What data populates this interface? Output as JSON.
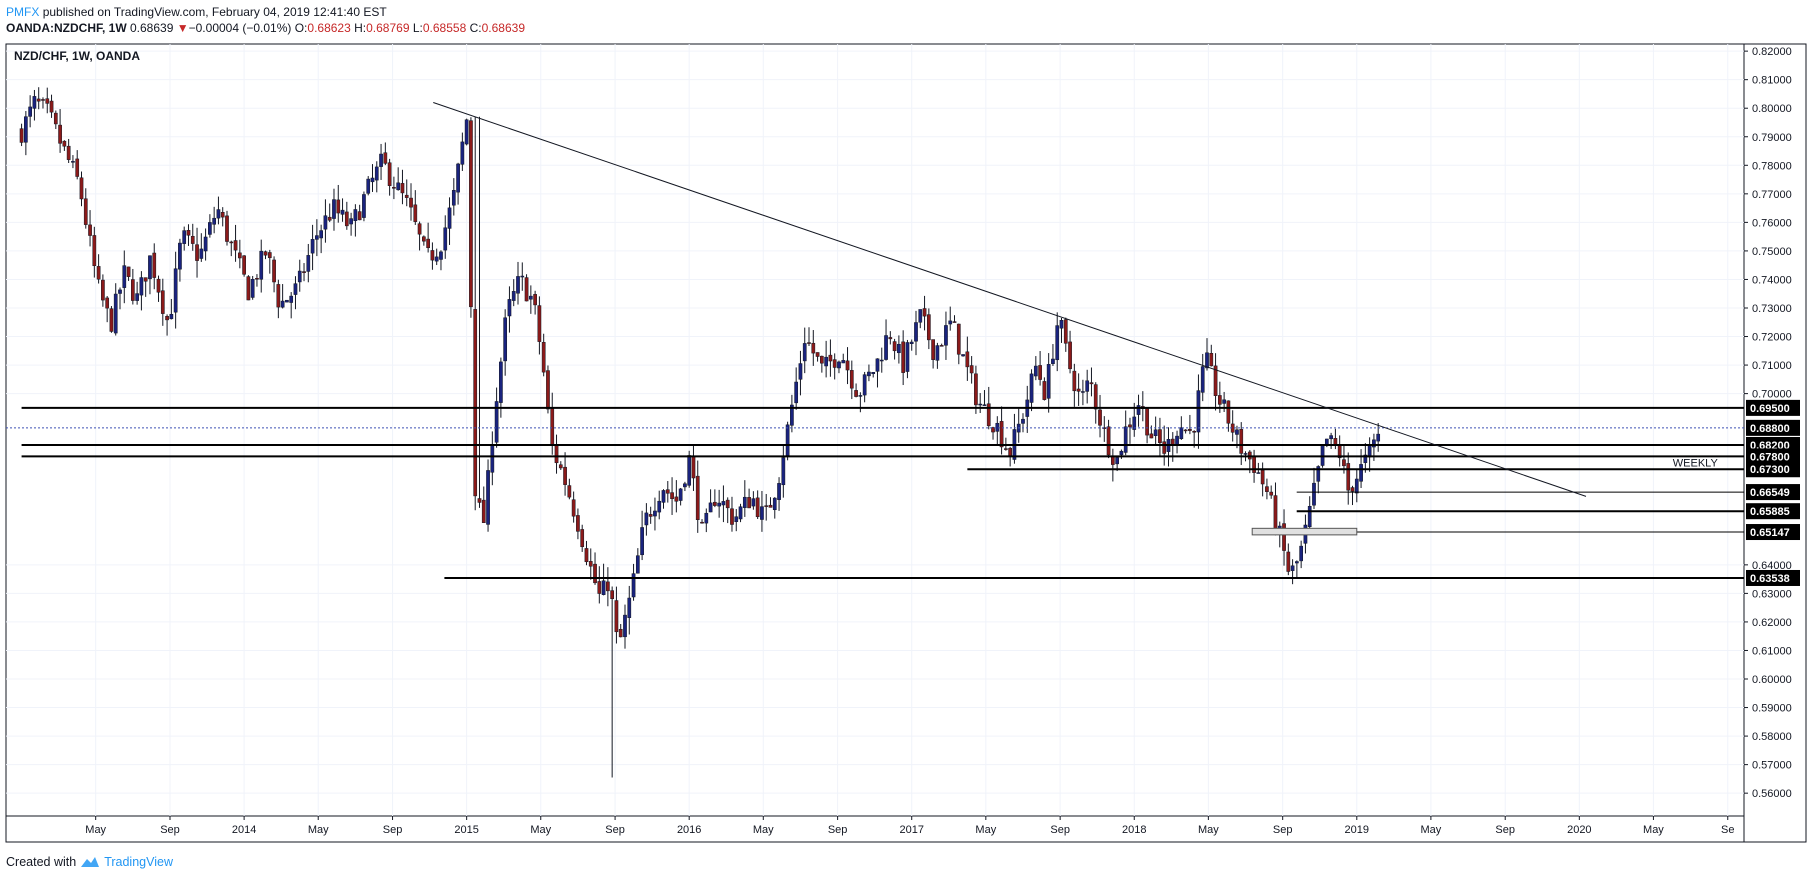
{
  "header": {
    "brand": "PMFX",
    "published": "published on TradingView.com, February 04, 2019 12:41:40 EST",
    "symbol": "OANDA:NZDCHF, 1W",
    "last": "0.68639",
    "arrow": "▼",
    "change": "−0.00004 (−0.01%)",
    "open_label": "O:",
    "open": "0.68623",
    "high_label": "H:",
    "high": "0.68769",
    "low_label": "L:",
    "low": "0.68558",
    "close_label": "C:",
    "close": "0.68639"
  },
  "footer": {
    "created": "Created with",
    "logo": "TradingView"
  },
  "colors": {
    "up": "#1a237e",
    "down": "#8b1a1a",
    "trendline": "#131722",
    "level": "#000000",
    "price_line": "#3f51b5"
  },
  "chart_data": {
    "type": "candlestick",
    "legend": "NZD/CHF, 1W, OANDA",
    "ylim": [
      0.552,
      0.8225
    ],
    "y_ticks": [
      "0.82000",
      "0.81000",
      "0.80000",
      "0.79000",
      "0.78000",
      "0.77000",
      "0.76000",
      "0.75000",
      "0.74000",
      "0.73000",
      "0.72000",
      "0.71000",
      "0.70000",
      "0.64000",
      "0.63000",
      "0.62000",
      "0.61000",
      "0.60000",
      "0.59000",
      "0.58000",
      "0.57000",
      "0.56000"
    ],
    "x_ticks": [
      {
        "label": "May",
        "t": 2013.333
      },
      {
        "label": "Sep",
        "t": 2013.667
      },
      {
        "label": "2014",
        "t": 2014.0
      },
      {
        "label": "May",
        "t": 2014.333
      },
      {
        "label": "Sep",
        "t": 2014.667
      },
      {
        "label": "2015",
        "t": 2015.0
      },
      {
        "label": "May",
        "t": 2015.333
      },
      {
        "label": "Sep",
        "t": 2015.667
      },
      {
        "label": "2016",
        "t": 2016.0
      },
      {
        "label": "May",
        "t": 2016.333
      },
      {
        "label": "Sep",
        "t": 2016.667
      },
      {
        "label": "2017",
        "t": 2017.0
      },
      {
        "label": "May",
        "t": 2017.333
      },
      {
        "label": "Sep",
        "t": 2017.667
      },
      {
        "label": "2018",
        "t": 2018.0
      },
      {
        "label": "May",
        "t": 2018.333
      },
      {
        "label": "Sep",
        "t": 2018.667
      },
      {
        "label": "2019",
        "t": 2019.0
      },
      {
        "label": "May",
        "t": 2019.333
      },
      {
        "label": "Sep",
        "t": 2019.667
      },
      {
        "label": "2020",
        "t": 2020.0
      },
      {
        "label": "May",
        "t": 2020.333
      },
      {
        "label": "Se",
        "t": 2020.667
      }
    ],
    "levels": [
      {
        "label": "0.69500",
        "y": 0.695,
        "from": 2013.0
      },
      {
        "label": "0.68800",
        "y": 0.688,
        "from": null
      },
      {
        "label": "0.68200",
        "y": 0.682,
        "from": 2013.0
      },
      {
        "label": "0.67800",
        "y": 0.678,
        "from": 2013.0
      },
      {
        "label": "0.67300",
        "y": 0.6735,
        "from": 2017.25
      },
      {
        "label": "0.66549",
        "y": 0.6655,
        "from": 2018.73
      },
      {
        "label": "0.65885",
        "y": 0.6588,
        "from": 2018.73
      },
      {
        "label": "0.65147",
        "y": 0.6515,
        "from": 2018.53
      },
      {
        "label": "0.63538",
        "y": 0.6354,
        "from": 2014.9
      }
    ],
    "last_price": 0.68639,
    "annotation": "WEEKLY",
    "trendline": [
      [
        2014.85,
        0.802
      ],
      [
        2020.03,
        0.664
      ]
    ],
    "series": [
      [
        2013.0,
        0.792
      ],
      [
        2013.06,
        0.802
      ],
      [
        2013.12,
        0.798
      ],
      [
        2013.18,
        0.787
      ],
      [
        2013.26,
        0.773
      ],
      [
        2013.34,
        0.738
      ],
      [
        2013.4,
        0.724
      ],
      [
        2013.46,
        0.742
      ],
      [
        2013.52,
        0.733
      ],
      [
        2013.58,
        0.748
      ],
      [
        2013.66,
        0.724
      ],
      [
        2013.72,
        0.755
      ],
      [
        2013.8,
        0.748
      ],
      [
        2013.88,
        0.765
      ],
      [
        2013.94,
        0.752
      ],
      [
        2014.02,
        0.736
      ],
      [
        2014.1,
        0.75
      ],
      [
        2014.16,
        0.731
      ],
      [
        2014.24,
        0.737
      ],
      [
        2014.32,
        0.755
      ],
      [
        2014.4,
        0.765
      ],
      [
        2014.48,
        0.758
      ],
      [
        2014.56,
        0.772
      ],
      [
        2014.62,
        0.781
      ],
      [
        2014.68,
        0.773
      ],
      [
        2014.74,
        0.765
      ],
      [
        2014.82,
        0.747
      ],
      [
        2014.88,
        0.752
      ],
      [
        2014.94,
        0.768
      ],
      [
        2015.0,
        0.796
      ],
      [
        2015.04,
        0.662
      ],
      [
        2015.08,
        0.655
      ],
      [
        2015.12,
        0.69
      ],
      [
        2015.18,
        0.728
      ],
      [
        2015.24,
        0.74
      ],
      [
        2015.3,
        0.732
      ],
      [
        2015.34,
        0.712
      ],
      [
        2015.38,
        0.682
      ],
      [
        2015.44,
        0.67
      ],
      [
        2015.5,
        0.655
      ],
      [
        2015.56,
        0.638
      ],
      [
        2015.6,
        0.628
      ],
      [
        2015.64,
        0.635
      ],
      [
        2015.68,
        0.61
      ],
      [
        2015.74,
        0.63
      ],
      [
        2015.8,
        0.655
      ],
      [
        2015.88,
        0.668
      ],
      [
        2015.94,
        0.662
      ],
      [
        2016.0,
        0.677
      ],
      [
        2016.06,
        0.65
      ],
      [
        2016.12,
        0.665
      ],
      [
        2016.2,
        0.656
      ],
      [
        2016.28,
        0.664
      ],
      [
        2016.34,
        0.656
      ],
      [
        2016.4,
        0.67
      ],
      [
        2016.46,
        0.695
      ],
      [
        2016.52,
        0.72
      ],
      [
        2016.6,
        0.708
      ],
      [
        2016.68,
        0.715
      ],
      [
        2016.76,
        0.7
      ],
      [
        2016.84,
        0.71
      ],
      [
        2016.9,
        0.722
      ],
      [
        2016.96,
        0.71
      ],
      [
        2017.04,
        0.727
      ],
      [
        2017.1,
        0.715
      ],
      [
        2017.18,
        0.725
      ],
      [
        2017.24,
        0.71
      ],
      [
        2017.3,
        0.697
      ],
      [
        2017.38,
        0.689
      ],
      [
        2017.44,
        0.679
      ],
      [
        2017.5,
        0.693
      ],
      [
        2017.56,
        0.71
      ],
      [
        2017.6,
        0.7
      ],
      [
        2017.66,
        0.727
      ],
      [
        2017.7,
        0.712
      ],
      [
        2017.76,
        0.697
      ],
      [
        2017.8,
        0.705
      ],
      [
        2017.86,
        0.687
      ],
      [
        2017.92,
        0.676
      ],
      [
        2017.96,
        0.687
      ],
      [
        2018.02,
        0.697
      ],
      [
        2018.08,
        0.685
      ],
      [
        2018.14,
        0.68
      ],
      [
        2018.2,
        0.689
      ],
      [
        2018.26,
        0.686
      ],
      [
        2018.32,
        0.712
      ],
      [
        2018.38,
        0.698
      ],
      [
        2018.44,
        0.688
      ],
      [
        2018.48,
        0.681
      ],
      [
        2018.54,
        0.675
      ],
      [
        2018.6,
        0.665
      ],
      [
        2018.66,
        0.648
      ],
      [
        2018.7,
        0.636
      ],
      [
        2018.74,
        0.642
      ],
      [
        2018.78,
        0.655
      ],
      [
        2018.82,
        0.67
      ],
      [
        2018.86,
        0.684
      ],
      [
        2018.92,
        0.68
      ],
      [
        2018.96,
        0.666
      ],
      [
        2019.0,
        0.671
      ],
      [
        2019.06,
        0.679
      ],
      [
        2019.1,
        0.6864
      ]
    ]
  }
}
